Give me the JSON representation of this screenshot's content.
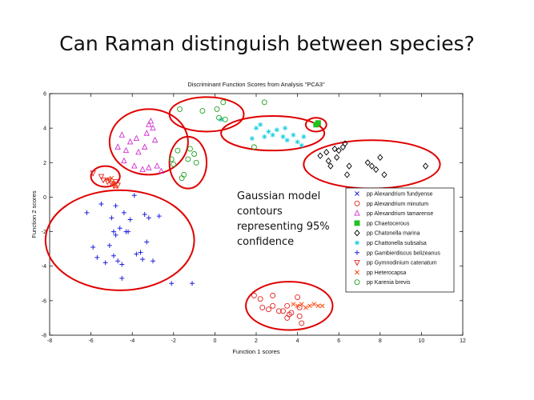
{
  "slide": {
    "title": "Can Raman distinguish between species?",
    "annotation": "Gaussian model\ncontours\nrepresenting 95%\nconfidence"
  },
  "chart_data": {
    "type": "scatter",
    "title": "Discriminant Function Scores from Analysis \"PCA3\"",
    "xlabel": "Function 1 scores",
    "ylabel": "Function 2 scores",
    "xlim": [
      -8,
      12
    ],
    "ylim": [
      -8,
      6
    ],
    "xticks": [
      -8,
      -6,
      -4,
      -2,
      0,
      2,
      4,
      6,
      8,
      10,
      12
    ],
    "yticks": [
      -8,
      -6,
      -4,
      -2,
      0,
      2,
      4,
      6
    ],
    "grid": false,
    "legend_position": "right",
    "series": [
      {
        "name": "pp Alexandrium fundyense",
        "marker": "x",
        "color": "#2020e0",
        "points": []
      },
      {
        "name": "pp Alexandrium minutum",
        "marker": "circle",
        "color": "#e02020",
        "points": [
          [
            1.9,
            -5.7
          ],
          [
            2.2,
            -5.9
          ],
          [
            2.3,
            -6.4
          ],
          [
            2.6,
            -6.5
          ],
          [
            2.8,
            -5.7
          ],
          [
            2.8,
            -6.3
          ],
          [
            3.1,
            -6.6
          ],
          [
            3.3,
            -6.6
          ],
          [
            3.5,
            -6.3
          ],
          [
            3.5,
            -7.0
          ],
          [
            3.6,
            -6.8
          ],
          [
            3.7,
            -6.7
          ],
          [
            4.0,
            -5.8
          ],
          [
            4.1,
            -6.4
          ],
          [
            4.1,
            -6.9
          ],
          [
            4.2,
            -7.3
          ]
        ]
      },
      {
        "name": "pp Alexandrium tamarense",
        "marker": "triangle-up",
        "color": "#d030d0",
        "points": [
          [
            -4.7,
            2.9
          ],
          [
            -4.5,
            3.6
          ],
          [
            -4.4,
            2.1
          ],
          [
            -4.3,
            2.7
          ],
          [
            -4.1,
            3.2
          ],
          [
            -3.9,
            1.8
          ],
          [
            -3.8,
            3.4
          ],
          [
            -3.7,
            2.6
          ],
          [
            -3.5,
            1.6
          ],
          [
            -3.4,
            2.9
          ],
          [
            -3.3,
            3.7
          ],
          [
            -3.2,
            4.2
          ],
          [
            -3.2,
            1.7
          ],
          [
            -3.0,
            4.0
          ],
          [
            -3.1,
            4.4
          ],
          [
            -2.9,
            3.3
          ],
          [
            -2.8,
            1.8
          ],
          [
            -2.6,
            1.5
          ]
        ]
      },
      {
        "name": "pp Chaetocerous",
        "marker": "square",
        "color": "#20c020",
        "points": [
          [
            4.9,
            4.2
          ],
          [
            5.0,
            4.3
          ]
        ]
      },
      {
        "name": "pp Chatonella marina",
        "marker": "diamond",
        "color": "#000000",
        "points": [
          [
            5.1,
            2.4
          ],
          [
            5.4,
            2.6
          ],
          [
            5.5,
            2.1
          ],
          [
            5.6,
            1.8
          ],
          [
            5.8,
            2.8
          ],
          [
            5.9,
            2.3
          ],
          [
            6.0,
            2.7
          ],
          [
            6.2,
            2.9
          ],
          [
            6.3,
            3.1
          ],
          [
            6.4,
            1.3
          ],
          [
            6.5,
            1.8
          ],
          [
            7.4,
            2.0
          ],
          [
            7.6,
            1.8
          ],
          [
            7.8,
            1.6
          ],
          [
            8.0,
            2.3
          ],
          [
            8.2,
            1.3
          ],
          [
            10.2,
            1.8
          ]
        ]
      },
      {
        "name": "pp Chattonella subsalsa",
        "marker": "star",
        "color": "#20d0e0",
        "points": [
          [
            0.3,
            4.5
          ],
          [
            1.8,
            3.4
          ],
          [
            2.0,
            4.0
          ],
          [
            2.2,
            4.2
          ],
          [
            2.4,
            3.5
          ],
          [
            2.6,
            3.8
          ],
          [
            2.8,
            3.6
          ],
          [
            3.0,
            3.9
          ],
          [
            3.3,
            3.5
          ],
          [
            3.4,
            4.0
          ],
          [
            3.5,
            3.3
          ],
          [
            3.8,
            3.6
          ],
          [
            4.0,
            3.2
          ],
          [
            4.2,
            3.0
          ],
          [
            4.3,
            3.5
          ]
        ]
      },
      {
        "name": "pp Gambierdiscus belizeanus",
        "marker": "plus",
        "color": "#2020e0",
        "points": [
          [
            -6.2,
            -0.9
          ],
          [
            -5.9,
            -2.9
          ],
          [
            -5.7,
            -3.5
          ],
          [
            -5.5,
            -0.4
          ],
          [
            -5.3,
            -3.8
          ],
          [
            -5.1,
            -2.8
          ],
          [
            -5.0,
            -1.2
          ],
          [
            -4.9,
            -2.0
          ],
          [
            -4.9,
            -3.4
          ],
          [
            -4.8,
            -0.5
          ],
          [
            -4.8,
            -2.2
          ],
          [
            -4.7,
            -3.7
          ],
          [
            -4.6,
            -1.8
          ],
          [
            -4.5,
            -3.9
          ],
          [
            -4.5,
            -4.7
          ],
          [
            -4.4,
            -0.9
          ],
          [
            -4.3,
            -2.0
          ],
          [
            -4.2,
            -2.0
          ],
          [
            -4.1,
            -1.3
          ],
          [
            -3.9,
            0.1
          ],
          [
            -3.8,
            -3.3
          ],
          [
            -3.6,
            -3.2
          ],
          [
            -3.5,
            -3.6
          ],
          [
            -3.4,
            -1.0
          ],
          [
            -3.3,
            -2.6
          ],
          [
            -3.2,
            -1.2
          ],
          [
            -3.0,
            -3.7
          ],
          [
            -2.7,
            -1.1
          ],
          [
            -2.1,
            -5.0
          ],
          [
            -1.1,
            -5.0
          ]
        ]
      },
      {
        "name": "pp Gymnodinium catenatum",
        "marker": "triangle-down",
        "color": "#e02020",
        "points": [
          [
            -5.9,
            1.4
          ],
          [
            -5.5,
            1.2
          ],
          [
            -5.4,
            1.0
          ],
          [
            -5.2,
            0.9
          ],
          [
            -5.1,
            1.0
          ],
          [
            -5.0,
            0.8
          ],
          [
            -4.9,
            0.7
          ],
          [
            -4.8,
            0.9
          ],
          [
            -4.7,
            0.7
          ]
        ]
      },
      {
        "name": "pp Heterocapsa",
        "marker": "x",
        "color": "#ff4000",
        "points": [
          [
            -5.2,
            1.0
          ],
          [
            -5.0,
            1.1
          ],
          [
            -4.9,
            0.8
          ],
          [
            -4.8,
            0.6
          ],
          [
            3.8,
            -6.2
          ],
          [
            4.0,
            -6.3
          ],
          [
            4.2,
            -6.2
          ],
          [
            4.4,
            -6.4
          ],
          [
            4.6,
            -6.3
          ],
          [
            4.8,
            -6.2
          ],
          [
            5.0,
            -6.3
          ],
          [
            5.2,
            -6.3
          ]
        ]
      },
      {
        "name": "pp Karenia brevis",
        "marker": "circle",
        "color": "#20a020",
        "points": [
          [
            -1.7,
            5.1
          ],
          [
            -2.1,
            2.2
          ],
          [
            -2.0,
            1.9
          ],
          [
            -1.8,
            2.7
          ],
          [
            -1.6,
            1.1
          ],
          [
            -1.5,
            1.3
          ],
          [
            -1.3,
            2.2
          ],
          [
            -1.2,
            2.8
          ],
          [
            -1.0,
            2.5
          ],
          [
            -0.9,
            2.0
          ],
          [
            -0.6,
            5.0
          ],
          [
            0.1,
            5.1
          ],
          [
            0.2,
            4.6
          ],
          [
            0.4,
            5.5
          ],
          [
            0.5,
            4.5
          ],
          [
            1.9,
            2.9
          ],
          [
            2.4,
            5.5
          ]
        ]
      }
    ],
    "ellipses": [
      {
        "center": [
          -3.2,
          3.2
        ],
        "rx": 1.9,
        "ry": 1.9
      },
      {
        "center": [
          -5.3,
          1.2
        ],
        "rx": 0.7,
        "ry": 0.6
      },
      {
        "center": [
          -4.6,
          -2.5
        ],
        "rx": 3.6,
        "ry": 2.9
      },
      {
        "center": [
          -1.3,
          2.0
        ],
        "rx": 0.9,
        "ry": 1.5
      },
      {
        "center": [
          -0.4,
          4.8
        ],
        "rx": 1.8,
        "ry": 1.0
      },
      {
        "center": [
          2.8,
          3.7
        ],
        "rx": 2.5,
        "ry": 1.0
      },
      {
        "center": [
          4.9,
          4.2
        ],
        "rx": 0.5,
        "ry": 0.4
      },
      {
        "center": [
          7.6,
          1.9
        ],
        "rx": 3.3,
        "ry": 1.4
      },
      {
        "center": [
          3.6,
          -6.3
        ],
        "rx": 2.1,
        "ry": 1.4
      }
    ],
    "colors": {
      "ellipse": "#e00000",
      "axis": "#000000"
    }
  }
}
